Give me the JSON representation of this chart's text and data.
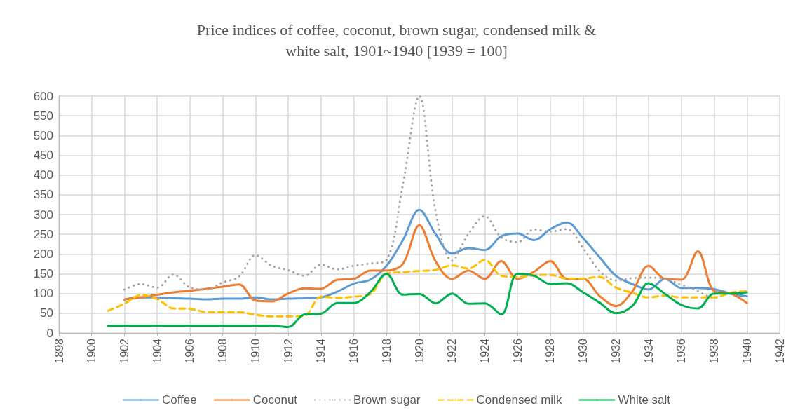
{
  "chart_data": {
    "type": "line",
    "title": "Price indices of coffee, coconut, brown sugar, condensed milk &\nwhite salt, 1901~1940 [1939 = 100]",
    "xlim": [
      1898,
      1942
    ],
    "xticks": [
      1898,
      1900,
      1902,
      1904,
      1906,
      1908,
      1910,
      1912,
      1914,
      1916,
      1918,
      1920,
      1922,
      1924,
      1926,
      1928,
      1930,
      1932,
      1934,
      1936,
      1938,
      1940,
      1942
    ],
    "ylim": [
      0,
      600
    ],
    "yticks": [
      0,
      50,
      100,
      150,
      200,
      250,
      300,
      350,
      400,
      450,
      500,
      550,
      600
    ],
    "grid": true,
    "legend": "bottom",
    "marker": "none",
    "x": [
      1901,
      1902,
      1903,
      1904,
      1905,
      1906,
      1907,
      1908,
      1909,
      1910,
      1911,
      1912,
      1913,
      1914,
      1915,
      1916,
      1917,
      1918,
      1919,
      1920,
      1921,
      1922,
      1923,
      1924,
      1925,
      1926,
      1927,
      1928,
      1929,
      1930,
      1931,
      1932,
      1933,
      1934,
      1935,
      1936,
      1937,
      1938,
      1939,
      1940
    ],
    "series": [
      {
        "name": "Coffee",
        "color": "#5b9bd5",
        "line_style": "solid",
        "values": [
          null,
          85,
          90,
          90,
          88,
          87,
          85,
          87,
          87,
          90,
          85,
          87,
          88,
          90,
          105,
          125,
          135,
          170,
          235,
          312,
          250,
          201,
          215,
          210,
          245,
          252,
          235,
          263,
          280,
          240,
          192,
          145,
          124,
          110,
          137,
          114,
          114,
          111,
          100,
          93
        ]
      },
      {
        "name": "Coconut",
        "color": "#ed7d31",
        "line_style": "solid",
        "values": [
          null,
          85,
          90,
          97,
          103,
          107,
          112,
          117,
          123,
          82,
          80,
          100,
          113,
          112,
          135,
          137,
          158,
          158,
          175,
          273,
          181,
          137,
          158,
          137,
          182,
          137,
          155,
          182,
          137,
          137,
          94,
          68,
          105,
          170,
          137,
          135,
          207,
          106,
          100,
          76
        ]
      },
      {
        "name": "Brown sugar",
        "color": "#a5a5a5",
        "line_style": "dotted",
        "values": [
          null,
          110,
          124,
          115,
          148,
          115,
          110,
          128,
          143,
          197,
          170,
          159,
          145,
          173,
          161,
          170,
          176,
          185,
          376,
          600,
          307,
          183,
          251,
          296,
          242,
          230,
          262,
          257,
          263,
          215,
          157,
          133,
          139,
          140,
          137,
          122,
          106,
          89,
          102,
          106
        ]
      },
      {
        "name": "Condensed milk",
        "color": "#ffc000",
        "line_style": "dashed",
        "values": [
          56,
          74,
          96,
          86,
          62,
          61,
          53,
          53,
          53,
          46,
          42,
          42,
          44,
          92,
          89,
          92,
          98,
          150,
          154,
          157,
          160,
          171,
          163,
          185,
          145,
          142,
          146,
          147,
          138,
          138,
          142,
          115,
          102,
          90,
          95,
          90,
          90,
          90,
          102,
          106
        ]
      },
      {
        "name": "White salt",
        "color": "#00b050",
        "line_style": "solid",
        "values": [
          18,
          18,
          18,
          18,
          18,
          18,
          18,
          18,
          18,
          18,
          18,
          15,
          47,
          49,
          76,
          76,
          103,
          150,
          97,
          99,
          75,
          100,
          74,
          75,
          47,
          150,
          145,
          124,
          126,
          103,
          77,
          50,
          68,
          126,
          99,
          71,
          62,
          100,
          100,
          103
        ]
      }
    ]
  }
}
